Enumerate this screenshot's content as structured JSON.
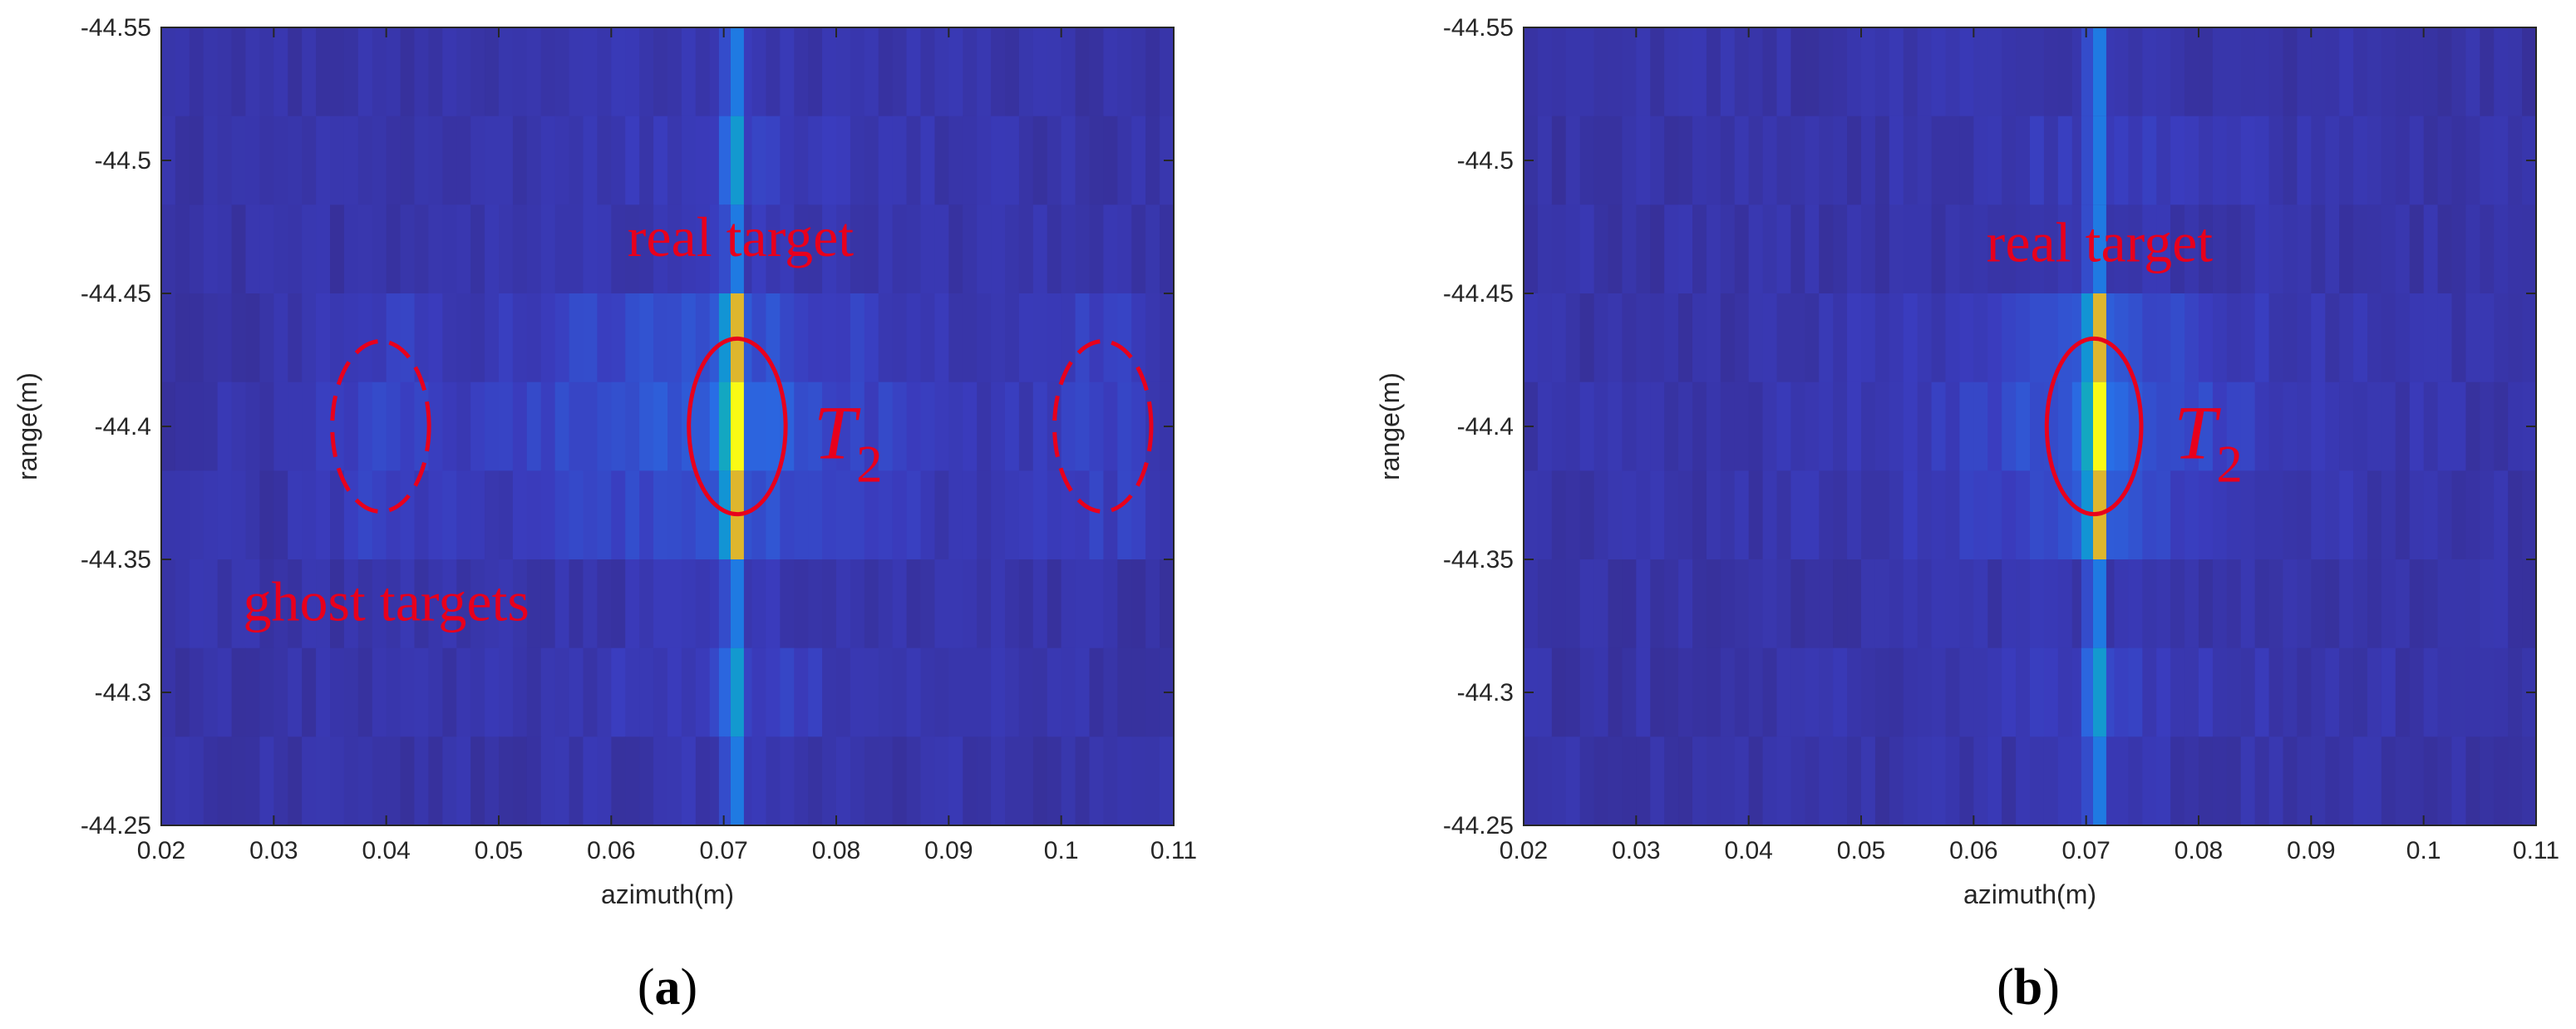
{
  "chart_data": [
    {
      "type": "heatmap",
      "panel_label": "(a)",
      "xlabel": "azimuth(m)",
      "ylabel": "range(m)",
      "xlim": [
        0.02,
        0.11
      ],
      "ylim": [
        -44.55,
        -44.25
      ],
      "x_ticks": [
        "0.02",
        "0.03",
        "0.04",
        "0.05",
        "0.06",
        "0.07",
        "0.08",
        "0.09",
        "0.1",
        "0.11"
      ],
      "y_ticks": [
        "-44.55",
        "-44.5",
        "-44.45",
        "-44.4",
        "-44.35",
        "-44.3",
        "-44.25"
      ],
      "colormap": "parula",
      "background_color": "#3b2fa8",
      "ghost_targets": true,
      "target_azimuth": 0.0712,
      "range_rows": [
        {
          "range": -44.54,
          "level": 0.1
        },
        {
          "range": -44.51,
          "level": 0.22
        },
        {
          "range": -44.47,
          "level": 0.14
        },
        {
          "range": -44.43,
          "level": 0.45
        },
        {
          "range": -44.4,
          "level": 0.62
        },
        {
          "range": -44.37,
          "level": 0.45
        },
        {
          "range": -44.33,
          "level": 0.12
        },
        {
          "range": -44.29,
          "level": 0.25
        },
        {
          "range": -44.26,
          "level": 0.08
        }
      ],
      "annotations": [
        {
          "text": "real target",
          "x": 0.0715,
          "y": -44.464,
          "size": 68
        },
        {
          "text": "ghost targets",
          "x": 0.04,
          "y": -44.327,
          "size": 68
        },
        {
          "text": "T",
          "sub": "2",
          "x": 0.078,
          "y": -44.388,
          "size": 92
        }
      ],
      "ellipses": [
        {
          "name": "real-target-ellipse",
          "cx": 0.0712,
          "cy": -44.4,
          "rx": 0.0043,
          "ry": 0.033,
          "dashed": false
        },
        {
          "name": "ghost-target-ellipse-left",
          "cx": 0.0395,
          "cy": -44.4,
          "rx": 0.0043,
          "ry": 0.032,
          "dashed": true
        },
        {
          "name": "ghost-target-ellipse-right",
          "cx": 0.1037,
          "cy": -44.4,
          "rx": 0.0043,
          "ry": 0.032,
          "dashed": true
        }
      ],
      "annotation_color": "#e8001c"
    },
    {
      "type": "heatmap",
      "panel_label": "(b)",
      "xlabel": "azimuth(m)",
      "ylabel": "range(m)",
      "xlim": [
        0.02,
        0.11
      ],
      "ylim": [
        -44.55,
        -44.25
      ],
      "x_ticks": [
        "0.02",
        "0.03",
        "0.04",
        "0.05",
        "0.06",
        "0.07",
        "0.08",
        "0.09",
        "0.1",
        "0.11"
      ],
      "y_ticks": [
        "-44.55",
        "-44.5",
        "-44.45",
        "-44.4",
        "-44.35",
        "-44.3",
        "-44.25"
      ],
      "colormap": "parula",
      "background_color": "#3b2fa8",
      "ghost_targets": false,
      "target_azimuth": 0.0712,
      "range_rows": [
        {
          "range": -44.54,
          "level": 0.08
        },
        {
          "range": -44.51,
          "level": 0.18
        },
        {
          "range": -44.47,
          "level": 0.1
        },
        {
          "range": -44.43,
          "level": 0.42
        },
        {
          "range": -44.4,
          "level": 0.58
        },
        {
          "range": -44.37,
          "level": 0.42
        },
        {
          "range": -44.33,
          "level": 0.08
        },
        {
          "range": -44.29,
          "level": 0.22
        },
        {
          "range": -44.26,
          "level": 0.06
        }
      ],
      "annotations": [
        {
          "text": "real target",
          "x": 0.0712,
          "y": -44.462,
          "size": 68
        },
        {
          "text": "T",
          "sub": "2",
          "x": 0.0778,
          "y": -44.388,
          "size": 92
        }
      ],
      "ellipses": [
        {
          "name": "real-target-ellipse",
          "cx": 0.0707,
          "cy": -44.4,
          "rx": 0.0042,
          "ry": 0.033,
          "dashed": false
        }
      ],
      "annotation_color": "#e8001c"
    }
  ]
}
